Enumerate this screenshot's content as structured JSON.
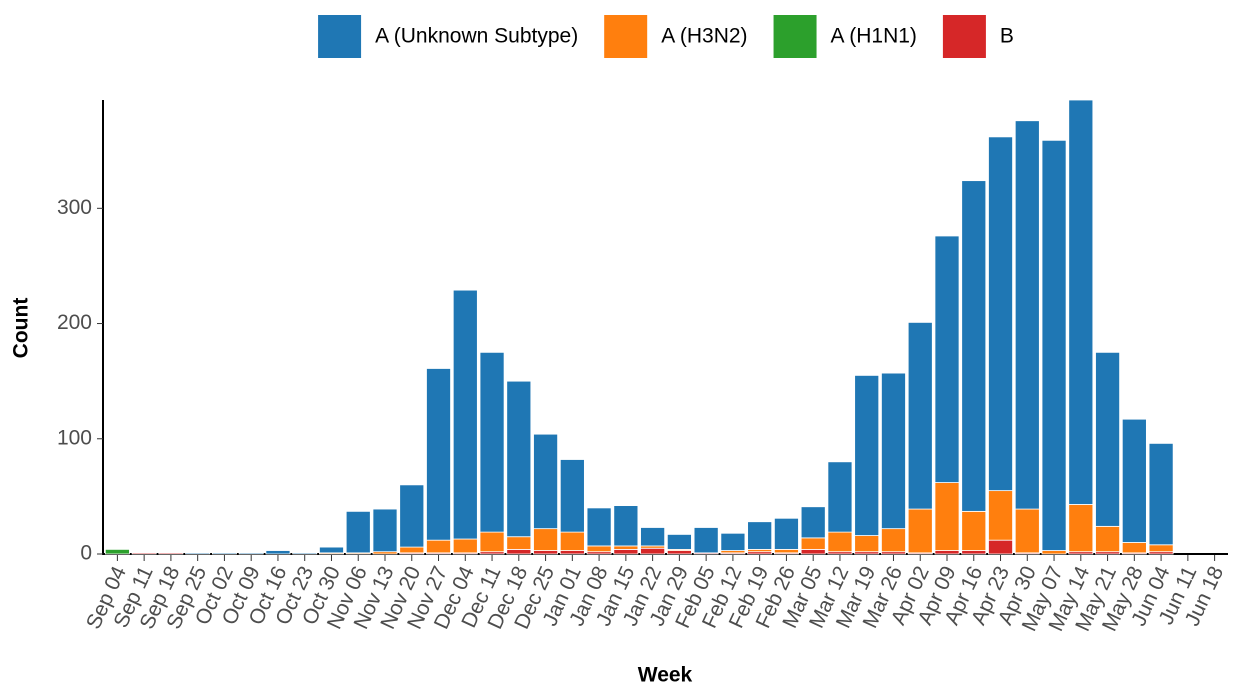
{
  "chart_data": {
    "type": "stacked_bar",
    "x_label": "Week",
    "y_label": "Count",
    "categories": [
      "Sep 04",
      "Sep 11",
      "Sep 18",
      "Sep 25",
      "Oct 02",
      "Oct 09",
      "Oct 16",
      "Oct 23",
      "Oct 30",
      "Nov 06",
      "Nov 13",
      "Nov 20",
      "Nov 27",
      "Dec 04",
      "Dec 11",
      "Dec 18",
      "Dec 25",
      "Jan 01",
      "Jan 08",
      "Jan 15",
      "Jan 22",
      "Jan 29",
      "Feb 05",
      "Feb 12",
      "Feb 19",
      "Feb 26",
      "Mar 05",
      "Mar 12",
      "Mar 19",
      "Mar 26",
      "Apr 02",
      "Apr 09",
      "Apr 16",
      "Apr 23",
      "Apr 30",
      "May 07",
      "May 14",
      "May 21",
      "May 28",
      "Jun 04",
      "Jun 11",
      "Jun 18"
    ],
    "series": [
      {
        "name": "A (Unknown Subtype)",
        "color": "#1f77b4",
        "values": [
          0,
          0,
          0,
          1,
          1,
          1,
          3,
          1,
          5,
          36,
          37,
          54,
          149,
          216,
          156,
          135,
          82,
          63,
          33,
          35,
          16,
          13,
          22,
          15,
          24,
          27,
          27,
          61,
          139,
          135,
          162,
          214,
          287,
          307,
          337,
          356,
          351,
          151,
          107,
          88,
          0,
          0
        ]
      },
      {
        "name": "A (H3N2)",
        "color": "#ff7f0e",
        "values": [
          0,
          0,
          0,
          0,
          0,
          0,
          0,
          0,
          1,
          1,
          2,
          5,
          11,
          12,
          17,
          11,
          19,
          16,
          5,
          3,
          2,
          1,
          0,
          2,
          2,
          3,
          10,
          17,
          14,
          20,
          38,
          59,
          34,
          43,
          38,
          3,
          41,
          22,
          9,
          6,
          0,
          0
        ]
      },
      {
        "name": "A (H1N1)",
        "color": "#2ca02c",
        "values": [
          4,
          0,
          0,
          0,
          0,
          0,
          0,
          0,
          0,
          0,
          0,
          0,
          0,
          0,
          0,
          0,
          0,
          0,
          0,
          0,
          0,
          0,
          0,
          0,
          0,
          0,
          0,
          0,
          0,
          0,
          0,
          0,
          0,
          0,
          0,
          0,
          0,
          0,
          0,
          0,
          0,
          0
        ]
      },
      {
        "name": "B",
        "color": "#d62728",
        "values": [
          0,
          1,
          1,
          0,
          0,
          0,
          0,
          0,
          0,
          0,
          0,
          1,
          1,
          1,
          2,
          4,
          3,
          3,
          2,
          4,
          5,
          3,
          1,
          1,
          2,
          1,
          4,
          2,
          2,
          2,
          1,
          3,
          3,
          12,
          1,
          0,
          2,
          2,
          1,
          2,
          0,
          0
        ]
      }
    ],
    "ylim": [
      0,
      394
    ],
    "yticks": [
      0,
      100,
      200,
      300
    ],
    "legend": "top"
  }
}
